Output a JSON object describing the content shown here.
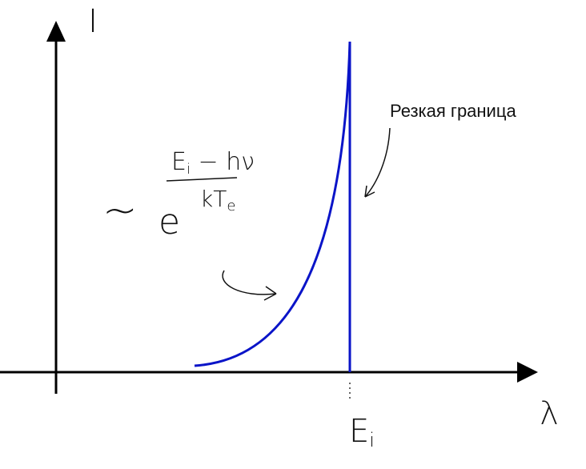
{
  "axes": {
    "y_label": "I",
    "x_label": "λ"
  },
  "edge_marker": {
    "main": "E",
    "sub": "i"
  },
  "annotation": "Резкая граница",
  "formula": {
    "prefix": "~",
    "base": "e",
    "numerator": {
      "main": "E",
      "sub": "i",
      "rest": " − hν"
    },
    "denominator": {
      "main": "kT",
      "sub": "e"
    }
  }
}
